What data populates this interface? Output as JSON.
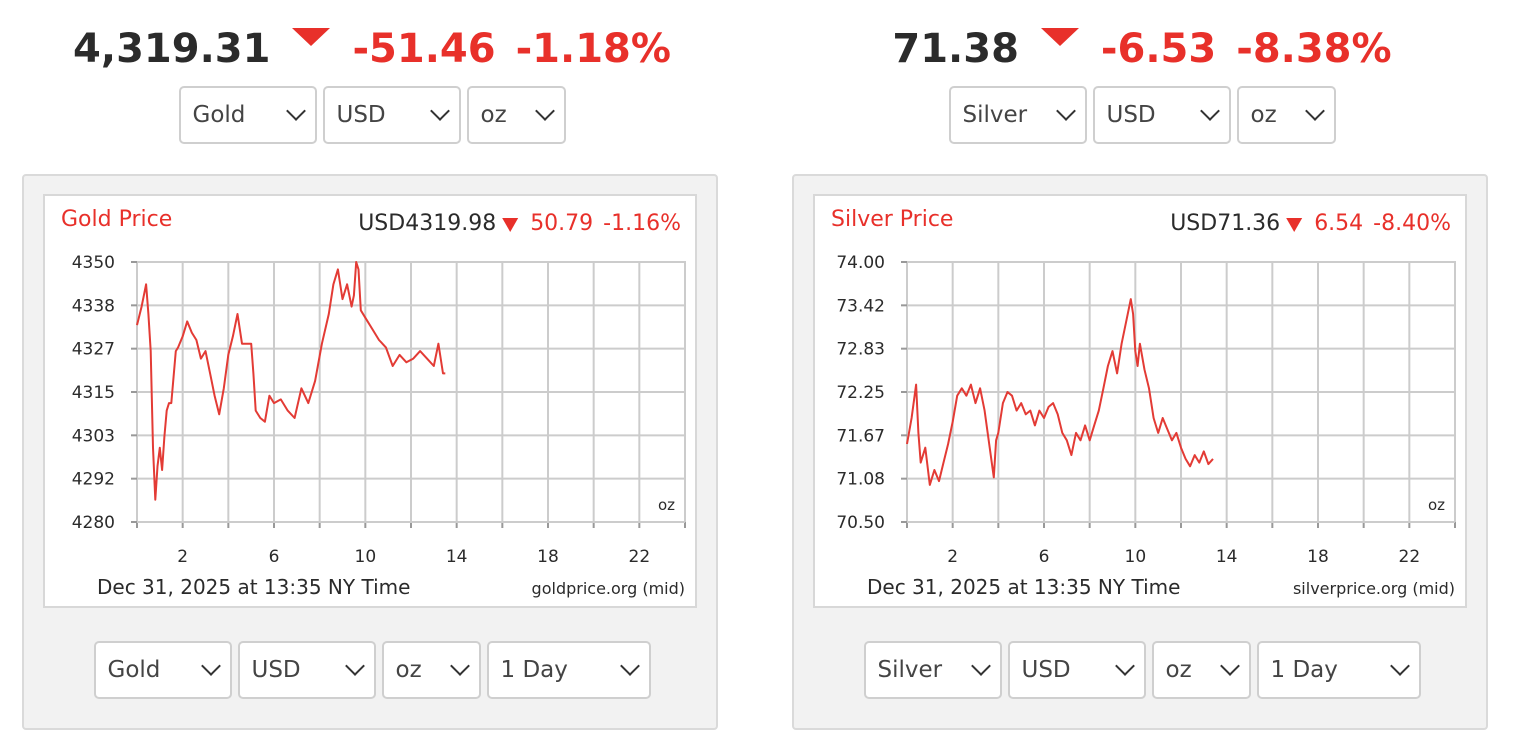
{
  "panels": [
    {
      "id": "gold",
      "ticker": {
        "price": "4,319.31",
        "change": "-51.46",
        "percent": "-1.18%"
      },
      "top_selects": [
        "Gold",
        "USD",
        "oz"
      ],
      "bottom_selects": [
        "Gold",
        "USD",
        "oz",
        "1 Day"
      ],
      "chart": {
        "title": "Gold Price",
        "quote_price": "USD4319.98",
        "quote_change": "50.79",
        "quote_percent": "-1.16%",
        "unit": "oz",
        "caption": "Dec 31, 2025 at 13:35 NY Time",
        "source": "goldprice.org (mid)"
      }
    },
    {
      "id": "silver",
      "ticker": {
        "price": "71.38",
        "change": "-6.53",
        "percent": "-8.38%"
      },
      "top_selects": [
        "Silver",
        "USD",
        "oz"
      ],
      "bottom_selects": [
        "Silver",
        "USD",
        "oz",
        "1 Day"
      ],
      "chart": {
        "title": "Silver Price",
        "quote_price": "USD71.36",
        "quote_change": "6.54",
        "quote_percent": "-8.40%",
        "unit": "oz",
        "caption": "Dec 31, 2025 at 13:35 NY Time",
        "source": "silverprice.org (mid)"
      }
    }
  ],
  "colors": {
    "down": "#e8302a",
    "line": "#e33b35",
    "grid": "#cccccc",
    "text": "#2b2b2b"
  },
  "icons": {
    "down_arrow": "triangle-down-icon",
    "dropdown": "chevron-down-icon"
  },
  "chart_data": [
    {
      "type": "line",
      "title": "Gold Price",
      "xlabel": "",
      "ylabel": "",
      "xlim": [
        0,
        24
      ],
      "ylim": [
        4280,
        4350
      ],
      "grid": true,
      "x_ticks": [
        2,
        6,
        10,
        14,
        18,
        22
      ],
      "y_ticks": [
        "4280",
        "4292",
        "4303",
        "4315",
        "4327",
        "4338",
        "4350"
      ],
      "series": [
        {
          "x": [
            0.0,
            0.2,
            0.4,
            0.5,
            0.6,
            0.7,
            0.8,
            0.9,
            1.0,
            1.1,
            1.2,
            1.3,
            1.4,
            1.5,
            1.7,
            1.8,
            2.0,
            2.2,
            2.4,
            2.6,
            2.8,
            3.0,
            3.2,
            3.4,
            3.6,
            3.8,
            4.0,
            4.2,
            4.4,
            4.6,
            4.8,
            5.0,
            5.1,
            5.2,
            5.4,
            5.6,
            5.8,
            6.0,
            6.3,
            6.6,
            6.9,
            7.2,
            7.5,
            7.8,
            8.1,
            8.4,
            8.6,
            8.8,
            9.0,
            9.2,
            9.4,
            9.5,
            9.6,
            9.7,
            9.8,
            10.0,
            10.3,
            10.6,
            10.9,
            11.2,
            11.5,
            11.8,
            12.1,
            12.4,
            12.7,
            13.0,
            13.2,
            13.4,
            13.5
          ],
          "y": [
            4333,
            4338,
            4344,
            4336,
            4326,
            4300,
            4286,
            4295,
            4300,
            4294,
            4303,
            4310,
            4312,
            4312,
            4326,
            4327,
            4330,
            4334,
            4331,
            4329,
            4324,
            4326,
            4320,
            4314,
            4309,
            4316,
            4325,
            4330,
            4336,
            4328,
            4328,
            4328,
            4320,
            4310,
            4308,
            4307,
            4314,
            4312,
            4313,
            4310,
            4308,
            4316,
            4312,
            4318,
            4328,
            4336,
            4344,
            4348,
            4340,
            4344,
            4338,
            4341,
            4350,
            4348,
            4337,
            4335,
            4332,
            4329,
            4327,
            4322,
            4325,
            4323,
            4324,
            4326,
            4324,
            4322,
            4328,
            4320,
            4320
          ]
        }
      ]
    },
    {
      "type": "line",
      "title": "Silver Price",
      "xlabel": "",
      "ylabel": "",
      "xlim": [
        0,
        24
      ],
      "ylim": [
        70.5,
        74.0
      ],
      "grid": true,
      "x_ticks": [
        2,
        6,
        10,
        14,
        18,
        22
      ],
      "y_ticks": [
        "70.50",
        "71.08",
        "71.67",
        "72.25",
        "72.83",
        "73.42",
        "74.00"
      ],
      "series": [
        {
          "x": [
            0.0,
            0.2,
            0.4,
            0.5,
            0.6,
            0.8,
            1.0,
            1.2,
            1.4,
            1.6,
            1.8,
            2.0,
            2.2,
            2.4,
            2.6,
            2.8,
            3.0,
            3.2,
            3.4,
            3.6,
            3.8,
            3.9,
            4.0,
            4.2,
            4.4,
            4.6,
            4.8,
            5.0,
            5.2,
            5.4,
            5.6,
            5.8,
            6.0,
            6.2,
            6.4,
            6.6,
            6.8,
            7.0,
            7.2,
            7.4,
            7.6,
            7.8,
            8.0,
            8.2,
            8.4,
            8.6,
            8.8,
            9.0,
            9.2,
            9.4,
            9.6,
            9.8,
            9.9,
            10.0,
            10.1,
            10.2,
            10.4,
            10.6,
            10.8,
            11.0,
            11.2,
            11.4,
            11.6,
            11.8,
            12.0,
            12.2,
            12.4,
            12.6,
            12.8,
            13.0,
            13.2,
            13.4
          ],
          "y": [
            71.55,
            71.9,
            72.35,
            71.7,
            71.3,
            71.5,
            71.0,
            71.2,
            71.05,
            71.3,
            71.55,
            71.85,
            72.2,
            72.3,
            72.2,
            72.35,
            72.1,
            72.3,
            72.0,
            71.55,
            71.1,
            71.6,
            71.7,
            72.1,
            72.25,
            72.2,
            72.0,
            72.1,
            71.95,
            72.0,
            71.8,
            72.0,
            71.9,
            72.05,
            72.1,
            71.95,
            71.7,
            71.6,
            71.4,
            71.7,
            71.6,
            71.8,
            71.6,
            71.8,
            72.0,
            72.3,
            72.6,
            72.8,
            72.5,
            72.9,
            73.2,
            73.5,
            73.3,
            72.8,
            72.6,
            72.9,
            72.55,
            72.3,
            71.9,
            71.7,
            71.9,
            71.75,
            71.6,
            71.7,
            71.5,
            71.35,
            71.25,
            71.4,
            71.3,
            71.45,
            71.28,
            71.35
          ]
        }
      ]
    }
  ]
}
